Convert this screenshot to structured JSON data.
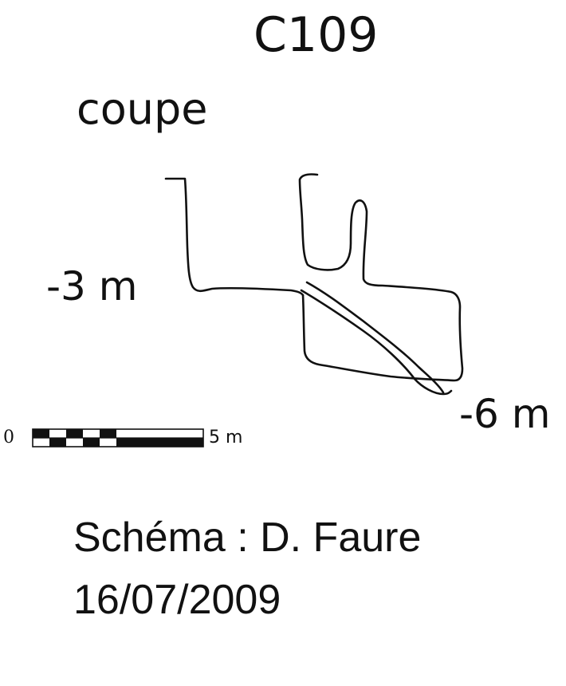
{
  "title": "C109",
  "view_label": "coupe",
  "depth_labels": {
    "upper": "-3 m",
    "lower": "-6 m"
  },
  "scale": {
    "start_label": "0",
    "end_label": "5 m"
  },
  "credit": "Schéma : D. Faure",
  "date": "16/07/2009",
  "colors": {
    "ink": "#111111",
    "background": "#ffffff"
  }
}
